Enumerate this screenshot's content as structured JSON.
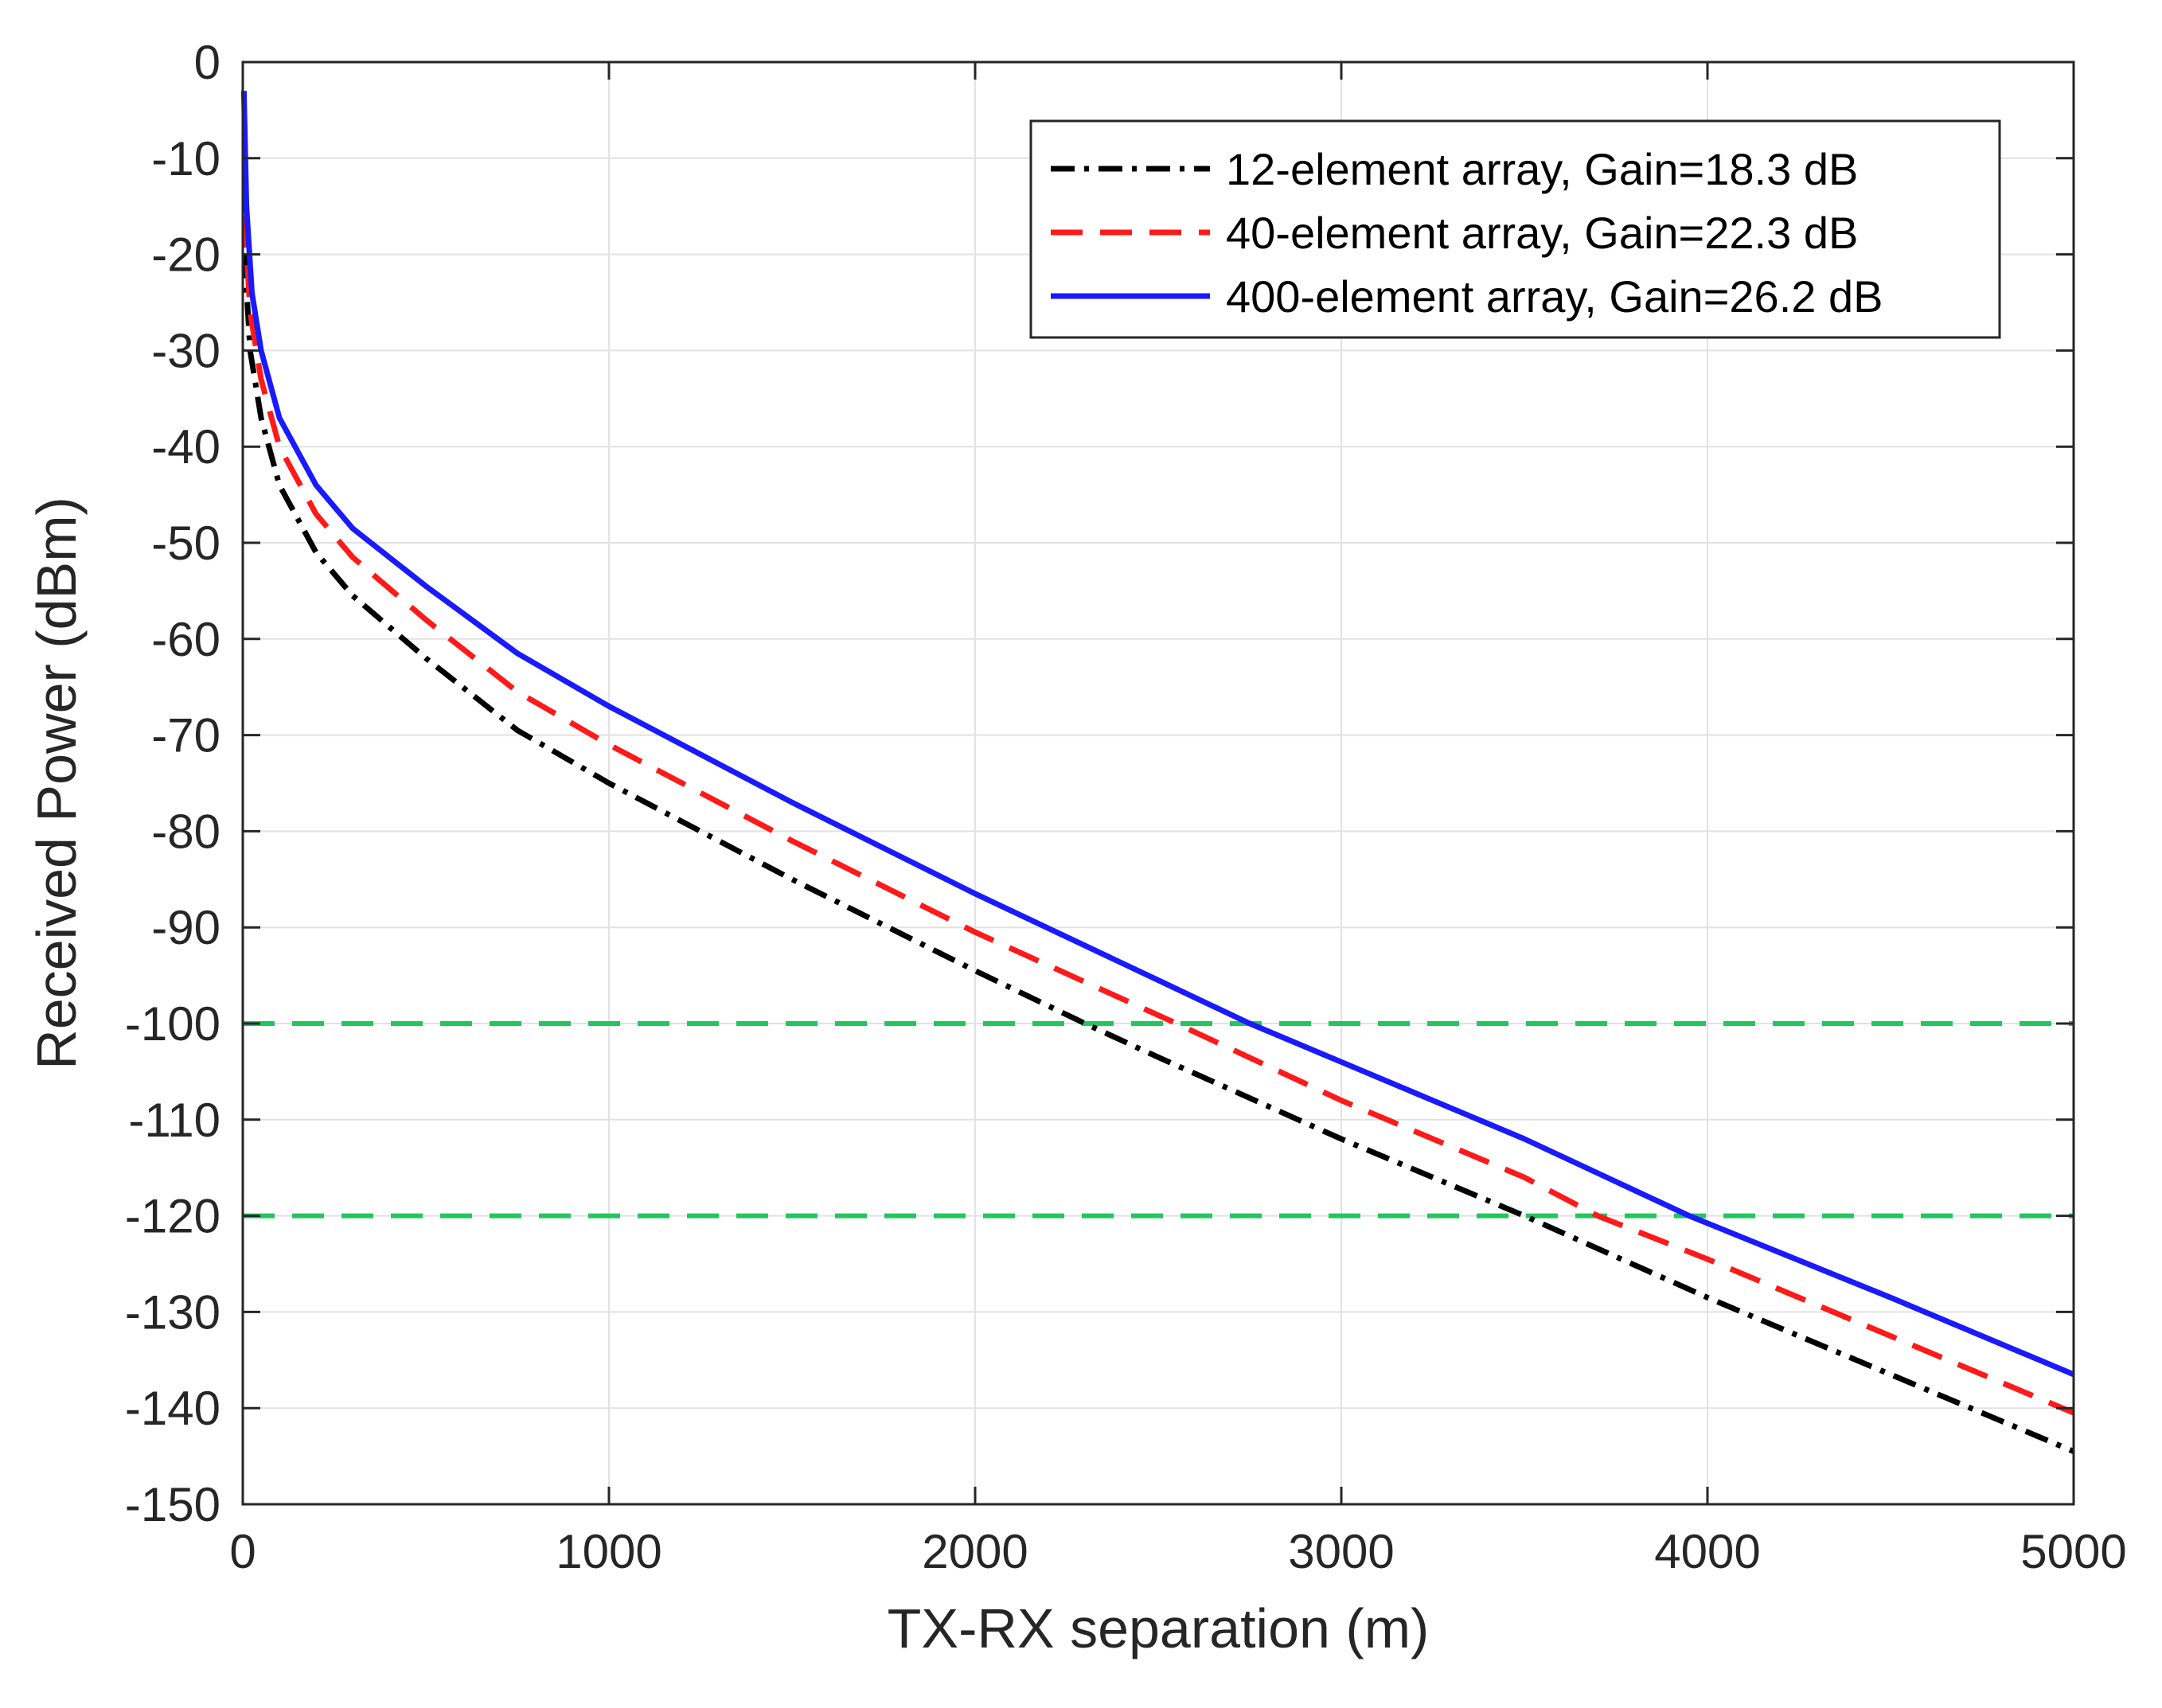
{
  "chart_data": {
    "type": "line",
    "xlabel": "TX-RX separation (m)",
    "ylabel": "Received Power (dBm)",
    "xlim": [
      0,
      5000
    ],
    "ylim": [
      -150,
      0
    ],
    "xticks": [
      0,
      1000,
      2000,
      3000,
      4000,
      5000
    ],
    "yticks": [
      0,
      -10,
      -20,
      -30,
      -40,
      -50,
      -60,
      -70,
      -80,
      -90,
      -100,
      -110,
      -120,
      -130,
      -140,
      -150
    ],
    "grid": true,
    "legend_position": "top-right",
    "series": [
      {
        "name": "12-element array, Gain=18.3 dB",
        "color": "#000000",
        "style": "dash-dot",
        "x": [
          5,
          20,
          50,
          100,
          200,
          300,
          500,
          750,
          1000,
          1500,
          2000,
          2300,
          2500,
          3000,
          3500,
          4000,
          4500,
          5000
        ],
        "y": [
          -20,
          -30,
          -37,
          -44,
          -51,
          -55.5,
          -62,
          -69.5,
          -75,
          -85,
          -94.5,
          -100,
          -103.5,
          -112,
          -120,
          -128.5,
          -136.5,
          -144.5
        ]
      },
      {
        "name": "40-element array, Gain=22.3 dB",
        "color": "#ff1a1a",
        "style": "dashed",
        "x": [
          5,
          20,
          50,
          100,
          200,
          300,
          500,
          750,
          1000,
          1500,
          2000,
          2550,
          3000,
          3500,
          3700,
          4000,
          4500,
          5000
        ],
        "y": [
          -16,
          -26,
          -33,
          -40,
          -47,
          -51.5,
          -58,
          -65.5,
          -71,
          -81,
          -90.5,
          -100,
          -108,
          -116,
          -120,
          -124.5,
          -132.5,
          -140.5
        ]
      },
      {
        "name": "400-element array, Gain=26.2 dB",
        "color": "#1a1aff",
        "style": "solid",
        "x": [
          3,
          10,
          25,
          50,
          100,
          200,
          300,
          500,
          750,
          1000,
          1500,
          2000,
          2500,
          2750,
          3000,
          3500,
          3950,
          4500,
          5000
        ],
        "y": [
          -3,
          -15,
          -24,
          -30,
          -37,
          -44,
          -48.5,
          -54.5,
          -61.5,
          -67,
          -77,
          -86.5,
          -95.5,
          -100,
          -104,
          -112,
          -120,
          -128.5,
          -136.5
        ]
      }
    ],
    "reference_lines": [
      {
        "y": -100,
        "color": "#22c55e",
        "style": "dashed"
      },
      {
        "y": -120,
        "color": "#22c55e",
        "style": "dashed"
      }
    ]
  }
}
